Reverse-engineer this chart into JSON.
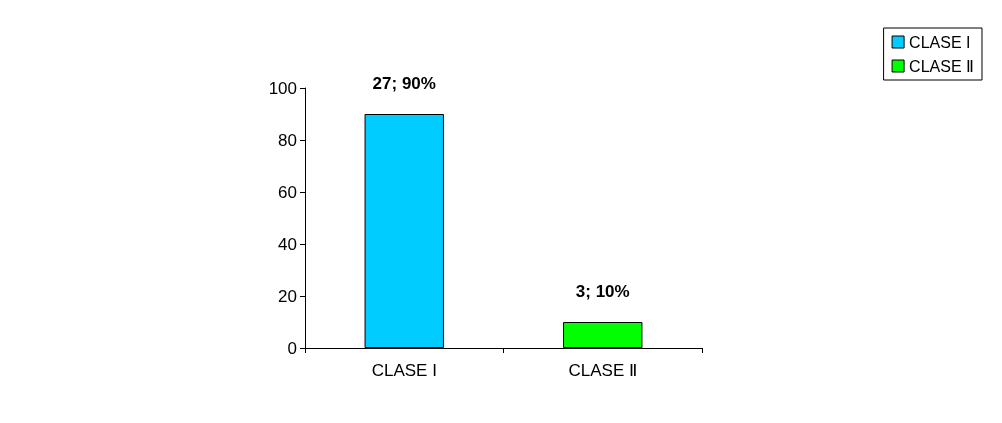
{
  "chart_data": {
    "type": "bar",
    "categories": [
      "CLASE I",
      "CLASE Ⅱ"
    ],
    "series": [
      {
        "name": "CLASE I",
        "color": "#00ccff",
        "values": [
          90,
          null
        ],
        "value_labels": [
          "27; 90%",
          null
        ]
      },
      {
        "name": "CLASE Ⅱ",
        "color": "#00ff00",
        "values": [
          null,
          10
        ],
        "value_labels": [
          null,
          "3; 10%"
        ]
      }
    ],
    "ylim": [
      0,
      100
    ],
    "yticks": [
      0,
      20,
      40,
      60,
      80,
      100
    ],
    "grid": false,
    "legend": "top right"
  }
}
